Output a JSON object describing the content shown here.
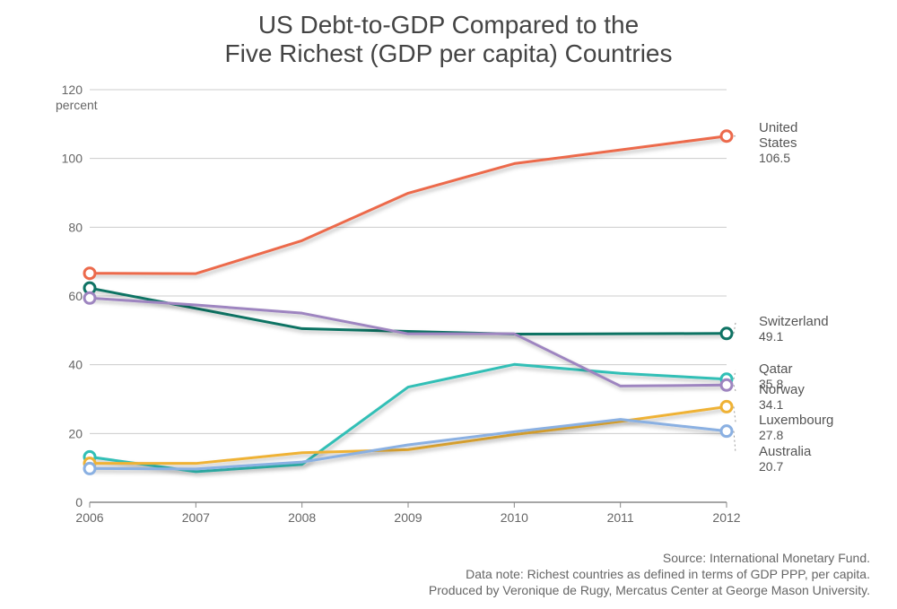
{
  "chart": {
    "type": "line",
    "title_line1": "US Debt-to-GDP Compared to the",
    "title_line2": "Five Richest (GDP per capita) Countries",
    "title_fontsize": 28,
    "background_color": "#ffffff",
    "x": {
      "years": [
        2006,
        2007,
        2008,
        2009,
        2010,
        2011,
        2012
      ],
      "label_fontsize": 14
    },
    "y": {
      "unit": "percent",
      "ylim": [
        0,
        120
      ],
      "ytick_step": 20,
      "ticks": [
        0,
        20,
        40,
        60,
        80,
        100,
        120
      ],
      "label_fontsize": 14
    },
    "grid_color": "#cccccc",
    "axis_color": "#888888",
    "line_width": 3,
    "marker_radius": 6,
    "marker_stroke_width": 3,
    "marker_fill": "#ffffff",
    "shadow_color": "rgba(0,0,0,0.25)",
    "series": [
      {
        "name": "United States",
        "final_value_label": "106.5",
        "color": "#ec6a4c",
        "values": [
          66.6,
          66.5,
          76.1,
          89.9,
          98.5,
          102.5,
          106.5
        ]
      },
      {
        "name": "Switzerland",
        "final_value_label": "49.1",
        "color": "#0f7364",
        "values": [
          62.3,
          56.4,
          50.5,
          49.7,
          48.9,
          49.0,
          49.1
        ]
      },
      {
        "name": "Qatar",
        "final_value_label": "35.8",
        "color": "#31bfb6",
        "values": [
          13.2,
          8.9,
          11.0,
          33.5,
          40.1,
          37.5,
          35.8
        ]
      },
      {
        "name": "Norway",
        "final_value_label": "34.1",
        "color": "#9e85c0",
        "values": [
          59.4,
          57.4,
          55.0,
          49.0,
          49.0,
          33.8,
          34.1
        ]
      },
      {
        "name": "Luxembourg",
        "final_value_label": "27.8",
        "color": "#efb235",
        "values": [
          11.3,
          11.3,
          14.4,
          15.3,
          19.7,
          23.5,
          27.8
        ]
      },
      {
        "name": "Australia",
        "final_value_label": "20.7",
        "color": "#8ab0e2",
        "values": [
          9.8,
          9.7,
          11.7,
          16.7,
          20.5,
          24.1,
          20.7
        ]
      }
    ],
    "series_label_fontsize": 15,
    "footer": {
      "line1": "Source: International Monetary Fund.",
      "line2": "Data note: Richest countries as defined in terms of GDP  PPP, per capita.",
      "line3": "Produced by Veronique de Rugy, Mercatus Center at George Mason University.",
      "fontsize": 14
    }
  }
}
